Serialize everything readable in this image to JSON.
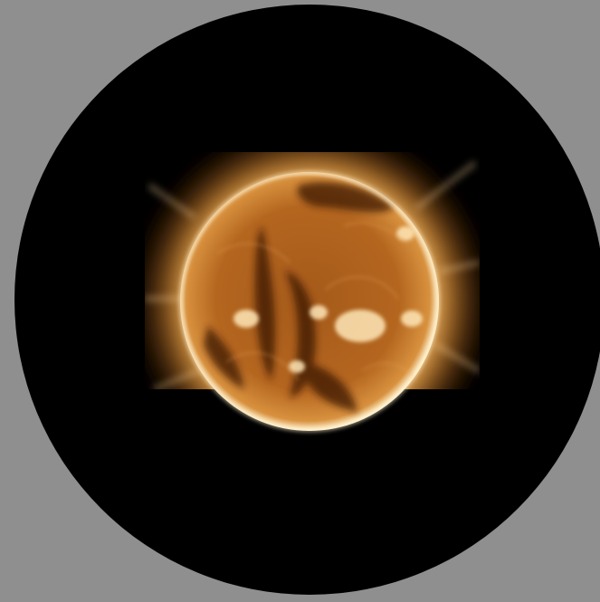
{
  "image": {
    "subject": "solar-disk",
    "background_color": "#8f8f8f",
    "occulter_color": "#000000",
    "palette": {
      "corona": "#f2b25c",
      "limb": "#fff0cc",
      "disk": "#b4661f",
      "dark_region": "#3a1806",
      "bright_region": "#ffe7b8"
    }
  }
}
